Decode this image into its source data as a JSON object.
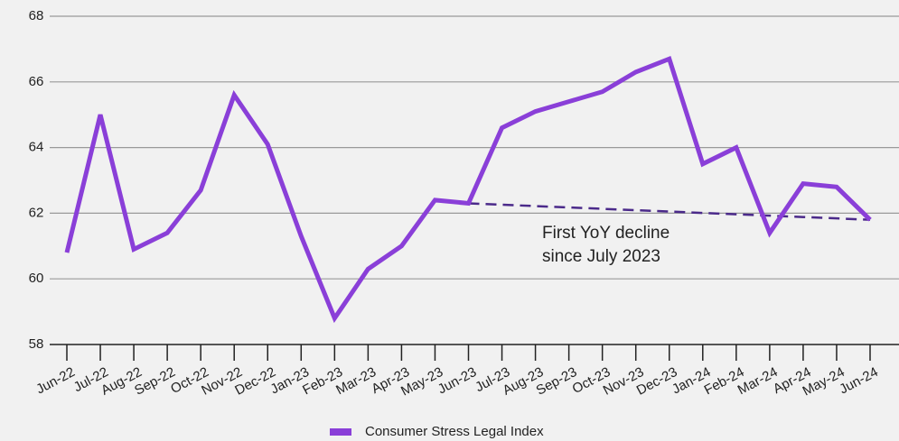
{
  "chart_data": {
    "type": "line",
    "categories": [
      "Jun-22",
      "Jul-22",
      "Aug-22",
      "Sep-22",
      "Oct-22",
      "Nov-22",
      "Dec-22",
      "Jan-23",
      "Feb-23",
      "Mar-23",
      "Apr-23",
      "May-23",
      "Jun-23",
      "Jul-23",
      "Aug-23",
      "Sep-23",
      "Oct-23",
      "Nov-23",
      "Dec-23",
      "Jan-24",
      "Feb-24",
      "Mar-24",
      "Apr-24",
      "May-24",
      "Jun-24"
    ],
    "series": [
      {
        "name": "Consumer Stress Legal Index",
        "color": "#8a3fd8",
        "values": [
          60.8,
          65.0,
          60.9,
          61.4,
          62.7,
          65.6,
          64.1,
          61.3,
          58.8,
          60.3,
          61.0,
          62.4,
          62.3,
          64.6,
          65.1,
          65.4,
          65.7,
          66.3,
          66.7,
          63.5,
          64.0,
          61.4,
          62.9,
          62.8,
          61.8
        ]
      }
    ],
    "reference_line": {
      "x": [
        "Jun-23",
        "Jun-24"
      ],
      "values": [
        62.3,
        61.8
      ],
      "style": "dashed",
      "color": "#4b2a8a"
    },
    "annotation": [
      "First YoY decline",
      "since July 2023"
    ],
    "ylim": [
      58,
      68
    ],
    "yticks": [
      58,
      60,
      62,
      64,
      66,
      68
    ],
    "grid": true,
    "legend": "bottom"
  }
}
